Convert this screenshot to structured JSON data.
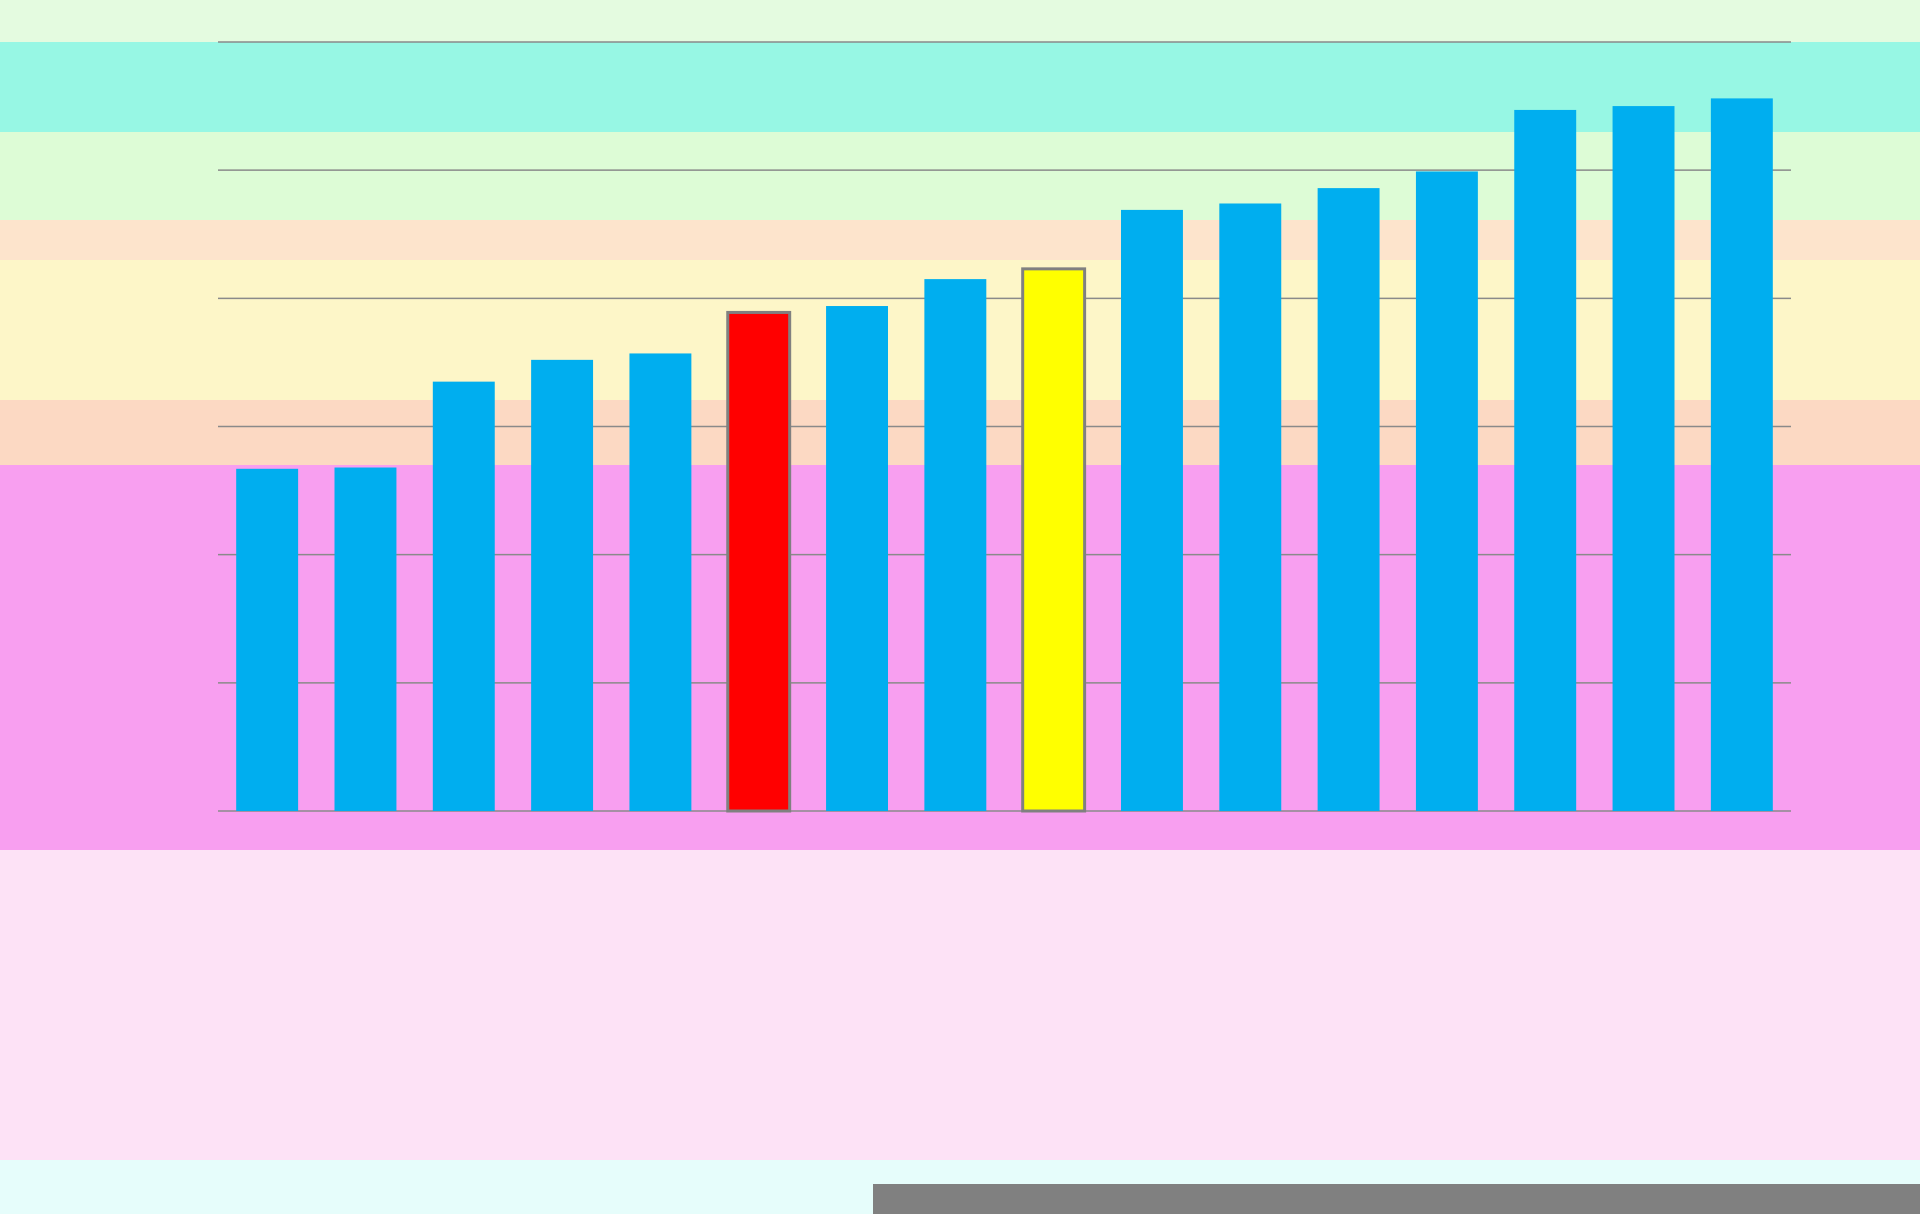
{
  "chart_data": {
    "type": "bar",
    "categories": [
      null,
      null,
      null,
      null,
      null,
      null,
      null,
      null,
      null,
      null,
      null,
      null,
      null,
      null,
      null,
      null
    ],
    "values": [
      2.67,
      2.68,
      3.35,
      3.52,
      3.57,
      3.89,
      3.94,
      4.15,
      4.23,
      4.69,
      4.74,
      4.86,
      4.99,
      5.47,
      5.5,
      5.56
    ],
    "color": "#00aeef",
    "colors": [
      "#00aeef",
      "#00aeef",
      "#00aeef",
      "#00aeef",
      "#00aeef",
      "#ff0000",
      "#00aeef",
      "#00aeef",
      "#ffff00",
      "#00aeef",
      "#00aeef",
      "#00aeef",
      "#00aeef",
      "#00aeef",
      "#00aeef",
      "#00aeef"
    ],
    "ylim": [
      0,
      6
    ],
    "yticks": [
      0,
      1,
      2,
      3,
      4,
      5,
      6
    ],
    "grid": true
  }
}
